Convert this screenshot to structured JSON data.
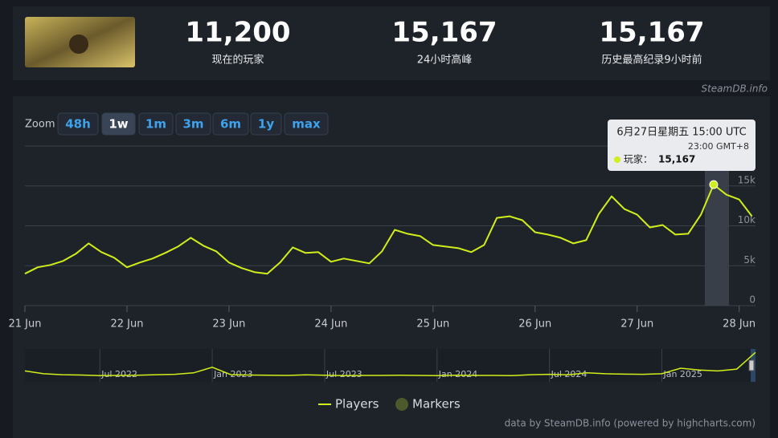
{
  "header": {
    "stats": [
      {
        "value": "11,200",
        "label": "现在的玩家"
      },
      {
        "value": "15,167",
        "label": "24小时高峰"
      },
      {
        "value": "15,167",
        "label": "历史最高纪录9小时前"
      }
    ],
    "credit": "SteamDB.info"
  },
  "zoom": {
    "label": "Zoom",
    "buttons": [
      "48h",
      "1w",
      "1m",
      "3m",
      "6m",
      "1y",
      "max"
    ],
    "active": 1
  },
  "chart_data": {
    "type": "line",
    "x": [
      0,
      0.125,
      0.25,
      0.375,
      0.5,
      0.625,
      0.75,
      0.875,
      1,
      1.125,
      1.25,
      1.375,
      1.5,
      1.625,
      1.75,
      1.875,
      2,
      2.125,
      2.25,
      2.375,
      2.5,
      2.625,
      2.75,
      2.875,
      3,
      3.125,
      3.25,
      3.375,
      3.5,
      3.625,
      3.75,
      3.875,
      4,
      4.125,
      4.25,
      4.375,
      4.5,
      4.625,
      4.75,
      4.875,
      5,
      5.125,
      5.25,
      5.375,
      5.5,
      5.625,
      5.75,
      5.875,
      6,
      6.125,
      6.25,
      6.375,
      6.5,
      6.625,
      6.75,
      6.875,
      7,
      7.125
    ],
    "series": [
      {
        "name": "Players",
        "color": "#cfee1a",
        "values": [
          4000,
          4800,
          5100,
          5600,
          6500,
          7800,
          6700,
          6000,
          4800,
          5400,
          5900,
          6600,
          7400,
          8500,
          7500,
          6800,
          5400,
          4700,
          4200,
          4000,
          5400,
          7300,
          6600,
          6700,
          5500,
          5900,
          5600,
          5300,
          6800,
          9500,
          9000,
          8700,
          7600,
          7400,
          7200,
          6700,
          7600,
          11000,
          11200,
          10700,
          9200,
          8900,
          8500,
          7800,
          8200,
          11500,
          13700,
          12100,
          11400,
          9800,
          10100,
          8900,
          9000,
          11400,
          15167,
          13900,
          13300,
          11200
        ]
      }
    ],
    "markers": {
      "name": "Markers",
      "color": "#4a5a2b"
    },
    "xlim": [
      0,
      7.16
    ],
    "xticks": [
      {
        "value": 0,
        "label": "21 Jun"
      },
      {
        "value": 1,
        "label": "22 Jun"
      },
      {
        "value": 2,
        "label": "23 Jun"
      },
      {
        "value": 3,
        "label": "24 Jun"
      },
      {
        "value": 4,
        "label": "25 Jun"
      },
      {
        "value": 5,
        "label": "26 Jun"
      },
      {
        "value": 6,
        "label": "27 Jun"
      },
      {
        "value": 7,
        "label": "28 Jun"
      }
    ],
    "ylim": [
      0,
      20000
    ],
    "yticks": [
      0,
      {
        "value": 5000,
        "label": "5k"
      },
      {
        "value": 10000,
        "label": "10k"
      },
      {
        "value": 15000,
        "label": "15k"
      }
    ],
    "grid": true,
    "tooltip": {
      "point": 54,
      "title": "6月27日星期五 15:00 UTC",
      "subtitle": "23:00 GMT+8",
      "series_label": "玩家：",
      "value": "15,167"
    }
  },
  "navigator": {
    "values": [
      5000,
      3500,
      3000,
      2800,
      2500,
      2600,
      2700,
      3000,
      3200,
      4000,
      7000,
      3000,
      2800,
      2700,
      2600,
      2900,
      2700,
      2500,
      2600,
      2600,
      2700,
      2600,
      2500,
      2700,
      2600,
      2600,
      2500,
      3000,
      3200,
      2900,
      4000,
      3500,
      3300,
      3200,
      3500,
      6500,
      5500,
      5000,
      6000,
      15000
    ],
    "xlim": [
      0,
      39
    ],
    "ylim": [
      0,
      16000
    ],
    "xticks": [
      {
        "value": 4,
        "label": "Jul 2022"
      },
      {
        "value": 10,
        "label": "Jan 2023"
      },
      {
        "value": 16,
        "label": "Jul 2023"
      },
      {
        "value": 22,
        "label": "Jan 2024"
      },
      {
        "value": 28,
        "label": "Jul 2024"
      },
      {
        "value": 34,
        "label": "Jan 2025"
      }
    ]
  },
  "footer": "data by SteamDB.info (powered by highcharts.com)"
}
